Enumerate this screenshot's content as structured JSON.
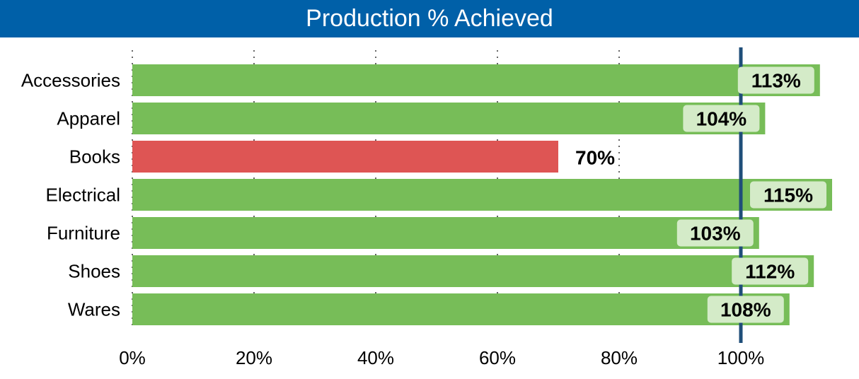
{
  "chart_data": {
    "type": "bar",
    "orientation": "horizontal",
    "title": "Production % Achieved",
    "categories": [
      "Accessories",
      "Apparel",
      "Books",
      "Electrical",
      "Furniture",
      "Shoes",
      "Wares"
    ],
    "values": [
      113,
      104,
      70,
      115,
      103,
      112,
      108
    ],
    "data_labels": [
      "113%",
      "104%",
      "70%",
      "115%",
      "103%",
      "112%",
      "108%"
    ],
    "xlim": [
      0,
      120
    ],
    "xticks": [
      0,
      20,
      40,
      60,
      80,
      100
    ],
    "xtick_labels": [
      "0%",
      "20%",
      "40%",
      "60%",
      "80%",
      "100%"
    ],
    "target_line": 100,
    "xlabel": "",
    "ylabel": "",
    "grid": "vertical dotted",
    "colors": {
      "above_target": "#77bd58",
      "below_target": "#de5554",
      "label_box": "#d4ebc8",
      "target_line": "#1f4e79",
      "title_bg": "#0060a8"
    }
  }
}
